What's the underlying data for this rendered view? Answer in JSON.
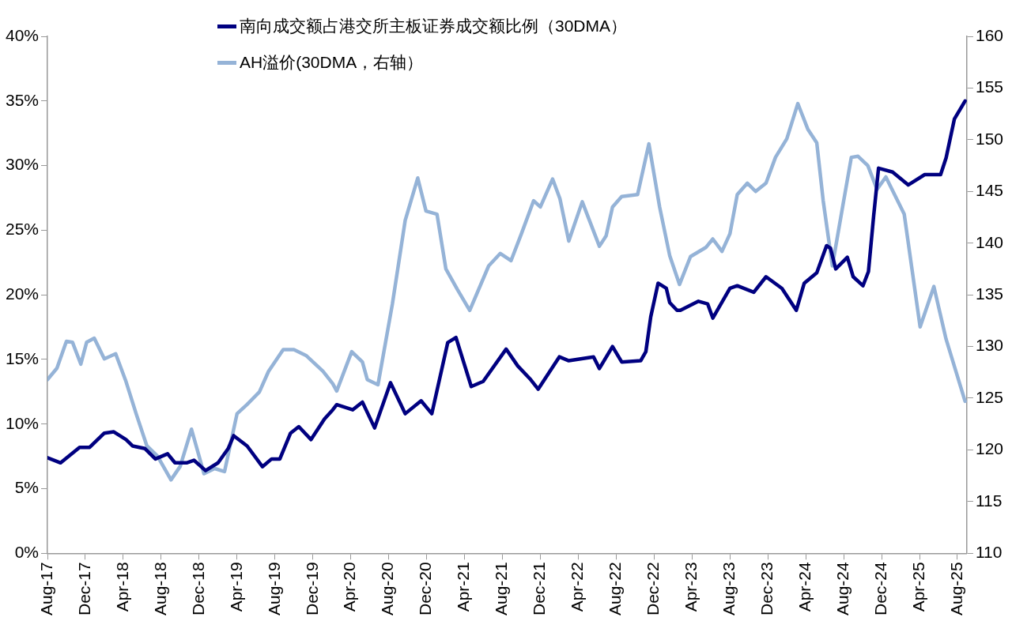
{
  "chart_data": {
    "type": "line",
    "legend": "top",
    "grid": false,
    "xlim": [
      "2017-08-01",
      "2025-09-01"
    ],
    "xticks": [
      {
        "value": "2017-08",
        "label": "Aug-17"
      },
      {
        "value": "2017-12",
        "label": "Dec-17"
      },
      {
        "value": "2018-04",
        "label": "Apr-18"
      },
      {
        "value": "2018-08",
        "label": "Aug-18"
      },
      {
        "value": "2018-12",
        "label": "Dec-18"
      },
      {
        "value": "2019-04",
        "label": "Apr-19"
      },
      {
        "value": "2019-08",
        "label": "Aug-19"
      },
      {
        "value": "2019-12",
        "label": "Dec-19"
      },
      {
        "value": "2020-04",
        "label": "Apr-20"
      },
      {
        "value": "2020-08",
        "label": "Aug-20"
      },
      {
        "value": "2020-12",
        "label": "Dec-20"
      },
      {
        "value": "2021-04",
        "label": "Apr-21"
      },
      {
        "value": "2021-08",
        "label": "Aug-21"
      },
      {
        "value": "2021-12",
        "label": "Dec-21"
      },
      {
        "value": "2022-04",
        "label": "Apr-22"
      },
      {
        "value": "2022-08",
        "label": "Aug-22"
      },
      {
        "value": "2022-12",
        "label": "Dec-22"
      },
      {
        "value": "2023-04",
        "label": "Apr-23"
      },
      {
        "value": "2023-08",
        "label": "Aug-23"
      },
      {
        "value": "2023-12",
        "label": "Dec-23"
      },
      {
        "value": "2024-04",
        "label": "Apr-24"
      },
      {
        "value": "2024-08",
        "label": "Aug-24"
      },
      {
        "value": "2024-12",
        "label": "Dec-24"
      },
      {
        "value": "2025-04",
        "label": "Apr-25"
      },
      {
        "value": "2025-08",
        "label": "Aug-25"
      }
    ],
    "ylim": [
      0,
      40
    ],
    "yticks": [
      {
        "value": 0,
        "label": "0%"
      },
      {
        "value": 5,
        "label": "5%"
      },
      {
        "value": 10,
        "label": "10%"
      },
      {
        "value": 15,
        "label": "15%"
      },
      {
        "value": 20,
        "label": "20%"
      },
      {
        "value": 25,
        "label": "25%"
      },
      {
        "value": 30,
        "label": "30%"
      },
      {
        "value": 35,
        "label": "35%"
      },
      {
        "value": 40,
        "label": "40%"
      }
    ],
    "y2lim": [
      110,
      160
    ],
    "y2ticks": [
      110,
      115,
      120,
      125,
      130,
      135,
      140,
      145,
      150,
      155,
      160
    ],
    "series": [
      {
        "name": "南向成交额占港交所主板证券成交额比例（30DMA）",
        "color": "#000080",
        "x": [
          "2017-08-01",
          "2017-09-13",
          "2017-11-13",
          "2017-12-15",
          "2018-02-01",
          "2018-03-01",
          "2018-04-10",
          "2018-05-01",
          "2018-06-10",
          "2018-07-13",
          "2018-08-22",
          "2018-09-15",
          "2018-10-22",
          "2018-11-15",
          "2018-12-22",
          "2019-02-01",
          "2019-03-03",
          "2019-03-21",
          "2019-05-03",
          "2019-06-22",
          "2019-07-21",
          "2019-08-17",
          "2019-09-21",
          "2019-10-17",
          "2019-11-26",
          "2020-01-08",
          "2020-02-04",
          "2020-02-17",
          "2020-04-07",
          "2020-05-08",
          "2020-06-17",
          "2020-08-07",
          "2020-09-24",
          "2020-11-14",
          "2020-12-18",
          "2021-02-08",
          "2021-03-04",
          "2021-04-23",
          "2021-05-31",
          "2021-08-13",
          "2021-09-20",
          "2021-10-29",
          "2021-11-25",
          "2022-02-01",
          "2022-03-01",
          "2022-05-20",
          "2022-06-08",
          "2022-07-20",
          "2022-08-19",
          "2022-10-19",
          "2022-11-05",
          "2022-11-21",
          "2022-12-14",
          "2023-01-10",
          "2023-01-21",
          "2023-02-14",
          "2023-02-25",
          "2023-04-22",
          "2023-05-21",
          "2023-06-07",
          "2023-08-01",
          "2023-08-25",
          "2023-10-17",
          "2023-11-26",
          "2024-01-16",
          "2024-03-01",
          "2024-03-27",
          "2024-05-06",
          "2024-06-07",
          "2024-06-20",
          "2024-07-06",
          "2024-08-13",
          "2024-09-01",
          "2024-10-02",
          "2024-10-20",
          "2024-11-06",
          "2024-11-22",
          "2025-01-06",
          "2025-02-26",
          "2025-04-18",
          "2025-06-08",
          "2025-06-26",
          "2025-07-22",
          "2025-08-26"
        ],
        "values": [
          7.4,
          7.0,
          8.2,
          8.2,
          9.3,
          9.4,
          8.8,
          8.3,
          8.1,
          7.3,
          7.7,
          7.0,
          7.0,
          7.2,
          6.4,
          7.0,
          8.1,
          9.1,
          8.3,
          6.7,
          7.3,
          7.3,
          9.3,
          9.8,
          8.8,
          10.4,
          11.1,
          11.5,
          11.1,
          11.7,
          9.7,
          13.2,
          10.8,
          11.8,
          10.8,
          16.3,
          16.7,
          12.9,
          13.3,
          15.8,
          14.5,
          13.5,
          12.7,
          15.2,
          14.9,
          15.2,
          14.3,
          16.0,
          14.8,
          14.9,
          15.6,
          18.3,
          20.9,
          20.5,
          19.4,
          18.8,
          18.8,
          19.5,
          19.3,
          18.2,
          20.5,
          20.7,
          20.2,
          21.4,
          20.5,
          18.8,
          20.9,
          21.7,
          23.8,
          23.6,
          22.0,
          22.9,
          21.4,
          20.7,
          21.8,
          26.1,
          29.8,
          29.5,
          28.5,
          29.3,
          29.3,
          30.6,
          33.6,
          35.0
        ]
      },
      {
        "name": "AH溢价(30DMA，右轴）",
        "color": "#95b3d7",
        "axis": "y2",
        "x": [
          "2017-08-01",
          "2017-09-01",
          "2017-10-01",
          "2017-10-21",
          "2017-11-17",
          "2017-12-05",
          "2017-12-30",
          "2018-02-01",
          "2018-03-07",
          "2018-04-10",
          "2018-05-12",
          "2018-06-16",
          "2018-07-20",
          "2018-09-02",
          "2018-10-01",
          "2018-11-07",
          "2018-12-17",
          "2019-01-21",
          "2019-02-22",
          "2019-04-01",
          "2019-05-03",
          "2019-06-12",
          "2019-07-11",
          "2019-08-28",
          "2019-10-01",
          "2019-11-11",
          "2020-01-03",
          "2020-02-04",
          "2020-02-17",
          "2020-04-04",
          "2020-05-08",
          "2020-05-24",
          "2020-06-28",
          "2020-08-13",
          "2020-09-24",
          "2020-11-03",
          "2020-11-30",
          "2021-01-04",
          "2021-02-02",
          "2021-03-09",
          "2021-04-18",
          "2021-06-18",
          "2021-07-25",
          "2021-08-29",
          "2021-10-01",
          "2021-11-10",
          "2021-12-01",
          "2022-01-10",
          "2022-02-03",
          "2022-03-01",
          "2022-04-14",
          "2022-06-08",
          "2022-06-30",
          "2022-07-20",
          "2022-08-19",
          "2022-10-09",
          "2022-11-15",
          "2022-12-19",
          "2023-01-21",
          "2023-02-22",
          "2023-03-27",
          "2023-05-16",
          "2023-06-07",
          "2023-07-06",
          "2023-08-01",
          "2023-08-25",
          "2023-09-27",
          "2023-10-23",
          "2023-11-26",
          "2023-12-26",
          "2024-02-01",
          "2024-03-06",
          "2024-04-08",
          "2024-05-06",
          "2024-05-27",
          "2024-06-26",
          "2024-08-01",
          "2024-08-26",
          "2024-09-17",
          "2024-10-18",
          "2024-11-17",
          "2024-12-15",
          "2025-02-13",
          "2025-04-03",
          "2025-05-17",
          "2025-06-26",
          "2025-08-26"
        ],
        "values": [
          126.8,
          127.9,
          130.5,
          130.4,
          128.3,
          130.4,
          130.8,
          128.8,
          129.3,
          126.6,
          123.5,
          120.4,
          119.4,
          117.1,
          118.4,
          122.0,
          117.7,
          118.2,
          117.9,
          123.5,
          124.4,
          125.6,
          127.6,
          129.7,
          129.7,
          129.1,
          127.6,
          126.4,
          125.7,
          129.5,
          128.5,
          126.8,
          126.3,
          134.1,
          142.2,
          146.3,
          143.1,
          142.8,
          137.5,
          135.5,
          133.5,
          137.8,
          139.0,
          138.3,
          140.9,
          144.1,
          143.5,
          146.2,
          144.3,
          140.2,
          144.0,
          139.7,
          140.7,
          143.5,
          144.5,
          144.7,
          149.6,
          143.5,
          138.8,
          136.0,
          138.7,
          139.6,
          140.4,
          139.2,
          140.9,
          144.7,
          145.8,
          145.0,
          145.8,
          148.3,
          150.1,
          153.5,
          151.0,
          149.7,
          144.1,
          137.8,
          144.1,
          148.3,
          148.4,
          147.5,
          145.2,
          146.4,
          142.8,
          131.9,
          135.8,
          130.7,
          124.7
        ]
      }
    ]
  }
}
